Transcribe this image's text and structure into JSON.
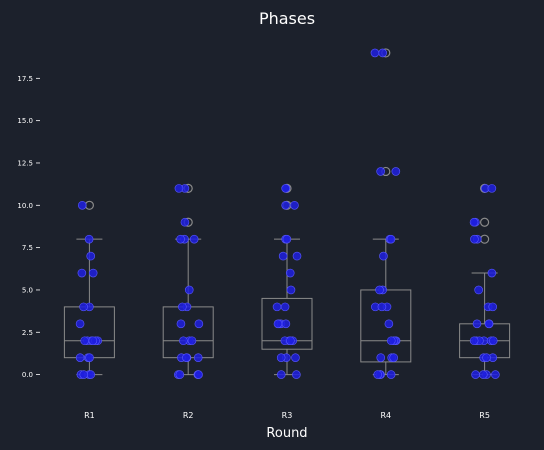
{
  "chart_data": {
    "type": "box",
    "title": "Phases",
    "xlabel": "Round",
    "ylabel": "",
    "categories": [
      "R1",
      "R2",
      "R3",
      "R4",
      "R5"
    ],
    "ylim": [
      -1.5,
      20
    ],
    "yticks": [
      0.0,
      2.5,
      5.0,
      7.5,
      10.0,
      12.5,
      15.0,
      17.5
    ],
    "ytick_labels": [
      "0.0",
      "2.5",
      "5.0",
      "7.5",
      "10.0",
      "12.5",
      "15.0",
      "17.5"
    ],
    "grid": false,
    "colors": {
      "background": "#1c212c",
      "box": "#8a8a8a",
      "point_fill": "#1f1fe0",
      "point_edge": "#5a5aff",
      "outlier": "#8a8a8a",
      "text": "#ffffff"
    },
    "boxes": [
      {
        "q1": 1.0,
        "median": 2.0,
        "q3": 4.0,
        "whisker_low": 0.0,
        "whisker_high": 8.0,
        "outliers": [
          10.0
        ]
      },
      {
        "q1": 1.0,
        "median": 2.0,
        "q3": 4.0,
        "whisker_low": 0.0,
        "whisker_high": 8.0,
        "outliers": [
          9.0,
          11.0
        ]
      },
      {
        "q1": 1.5,
        "median": 2.0,
        "q3": 4.5,
        "whisker_low": 0.0,
        "whisker_high": 8.0,
        "outliers": [
          10.0,
          11.0
        ]
      },
      {
        "q1": 0.75,
        "median": 2.0,
        "q3": 5.0,
        "whisker_low": 0.0,
        "whisker_high": 8.0,
        "outliers": [
          12.0,
          19.0
        ]
      },
      {
        "q1": 1.0,
        "median": 2.0,
        "q3": 3.0,
        "whisker_low": 0.0,
        "whisker_high": 6.0,
        "outliers": [
          8.0,
          9.0,
          11.0
        ]
      }
    ],
    "points": [
      [
        0,
        0,
        0,
        0,
        1,
        1,
        1,
        2,
        2,
        2,
        2,
        2,
        2,
        3,
        4,
        4,
        6,
        6,
        7,
        8,
        10
      ],
      [
        0,
        0,
        0,
        0,
        1,
        1,
        1,
        1,
        2,
        2,
        2,
        3,
        3,
        4,
        4,
        5,
        8,
        8,
        8,
        9,
        11,
        11
      ],
      [
        0,
        0,
        1,
        1,
        1,
        2,
        2,
        2,
        2,
        3,
        3,
        3,
        3,
        4,
        4,
        5,
        6,
        7,
        7,
        8,
        8,
        10,
        10,
        11,
        11
      ],
      [
        0,
        0,
        0,
        0,
        1,
        1,
        1,
        2,
        2,
        2,
        2,
        3,
        4,
        4,
        4,
        5,
        5,
        7,
        8,
        8,
        12,
        12,
        19,
        19
      ],
      [
        0,
        0,
        0,
        0,
        1,
        1,
        1,
        2,
        2,
        2,
        2,
        2,
        2,
        3,
        3,
        3,
        4,
        4,
        5,
        6,
        8,
        8,
        9,
        9,
        11,
        11
      ]
    ]
  }
}
